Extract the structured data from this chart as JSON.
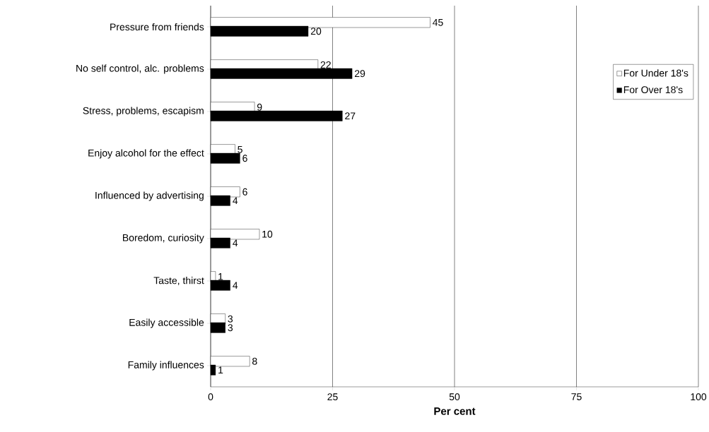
{
  "chart_data": {
    "type": "bar",
    "orientation": "horizontal",
    "xlabel": "Per cent",
    "categories": [
      "Pressure from friends",
      "No self control, alc. problems",
      "Stress, problems, escapism",
      "Enjoy alcohol for the effect",
      "Influenced by advertising",
      "Boredom, curiosity",
      "Taste, thirst",
      "Easily accessible",
      "Family influences"
    ],
    "series": [
      {
        "name": "For Under 18's",
        "color": "#ffffff",
        "values": [
          45,
          22,
          9,
          5,
          6,
          10,
          1,
          3,
          8
        ]
      },
      {
        "name": "For Over 18's",
        "color": "#000000",
        "values": [
          20,
          29,
          27,
          6,
          4,
          4,
          4,
          3,
          1
        ]
      }
    ],
    "xlim": [
      0,
      100
    ],
    "xticks": [
      0,
      25,
      50,
      75,
      100
    ],
    "grid": "x",
    "legend": "right",
    "data_labels": true
  }
}
